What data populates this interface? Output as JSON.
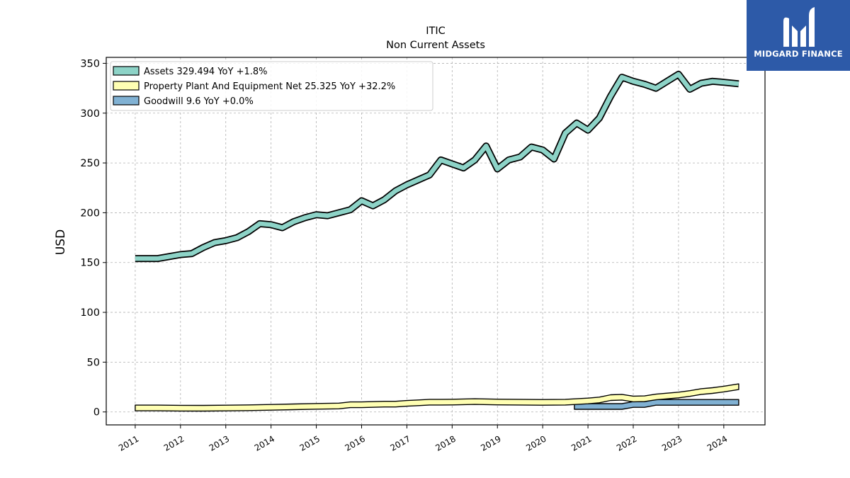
{
  "chart_data": {
    "type": "line",
    "title": "ITIC",
    "subtitle": "Non Current  Assets",
    "ylabel": "USD",
    "xlabel": "",
    "ylim": [
      -13,
      356
    ],
    "xlim": [
      2010.36,
      2024.91
    ],
    "yticks": [
      0,
      50,
      100,
      150,
      200,
      250,
      300,
      350
    ],
    "xticks": [
      "2011",
      "2012",
      "2013",
      "2014",
      "2015",
      "2016",
      "2017",
      "2018",
      "2019",
      "2020",
      "2021",
      "2022",
      "2023",
      "2024"
    ],
    "grid": true,
    "legend_position": "top-left",
    "series": [
      {
        "name": "Assets",
        "legend_label": "Assets  329.494 YoY +1.8%",
        "color": "#8dd3c7",
        "style": "thick-line",
        "x": [
          2011.0,
          2011.5,
          2011.75,
          2012.0,
          2012.25,
          2012.5,
          2012.75,
          2013.0,
          2013.25,
          2013.5,
          2013.75,
          2014.0,
          2014.25,
          2014.5,
          2014.75,
          2015.0,
          2015.25,
          2015.5,
          2015.75,
          2016.0,
          2016.25,
          2016.5,
          2016.75,
          2017.0,
          2017.25,
          2017.5,
          2017.75,
          2018.0,
          2018.25,
          2018.5,
          2018.75,
          2019.0,
          2019.25,
          2019.5,
          2019.75,
          2020.0,
          2020.25,
          2020.5,
          2020.75,
          2021.0,
          2021.25,
          2021.5,
          2021.75,
          2022.0,
          2022.25,
          2022.5,
          2022.75,
          2023.0,
          2023.25,
          2023.5,
          2023.75,
          2024.0,
          2024.33
        ],
        "values": [
          154,
          154,
          156,
          158,
          159,
          165,
          170,
          172,
          175,
          181,
          189,
          188,
          185,
          191,
          195,
          198,
          197,
          200,
          203,
          212,
          207,
          213,
          222,
          228,
          233,
          238,
          253,
          249,
          245,
          253,
          267,
          244,
          253,
          256,
          266,
          263,
          254,
          280,
          290,
          283,
          295,
          317,
          336,
          332,
          329,
          325,
          332,
          339,
          324,
          330,
          332,
          331,
          329.494
        ]
      },
      {
        "name": "Property Plant And Equipment Net",
        "legend_label": "Property Plant And Equipment Net  25.325 YoY +32.2%",
        "color": "#ffffb3",
        "style": "band",
        "x": [
          2011.0,
          2011.5,
          2012.0,
          2012.5,
          2013.0,
          2013.5,
          2014.0,
          2014.5,
          2015.0,
          2015.5,
          2015.75,
          2016.0,
          2016.5,
          2016.75,
          2017.0,
          2017.25,
          2017.5,
          2017.75,
          2018.0,
          2018.5,
          2019.0,
          2019.5,
          2020.0,
          2020.5,
          2021.0,
          2021.25,
          2021.5,
          2021.75,
          2022.0,
          2022.25,
          2022.5,
          2022.75,
          2023.0,
          2023.25,
          2023.5,
          2023.75,
          2024.0,
          2024.33
        ],
        "values": [
          4,
          4,
          3.8,
          3.7,
          3.9,
          4.2,
          4.6,
          5.1,
          5.6,
          6,
          7.2,
          7.2,
          7.8,
          7.8,
          8.6,
          9.2,
          9.8,
          9.8,
          9.9,
          10.4,
          10,
          9.8,
          9.6,
          9.8,
          11,
          12,
          14.4,
          14.8,
          13,
          13.2,
          15,
          16,
          17,
          18.5,
          20.5,
          21.5,
          23,
          25.325
        ]
      },
      {
        "name": "Goodwill",
        "legend_label": "Goodwill  9.6 YoY +0.0%",
        "color": "#80b1d3",
        "style": "band",
        "x": [
          2020.7,
          2021.0,
          2021.5,
          2021.75,
          2022.0,
          2022.25,
          2022.5,
          2022.75,
          2023.0,
          2023.5,
          2024.0,
          2024.33
        ],
        "values": [
          5.5,
          5.5,
          5.5,
          5.5,
          7.5,
          7.5,
          9.6,
          9.6,
          9.6,
          9.6,
          9.6,
          9.6
        ]
      }
    ]
  },
  "logo": {
    "text": "MIDGARD FINANCE",
    "background": "#2d5aa8"
  }
}
